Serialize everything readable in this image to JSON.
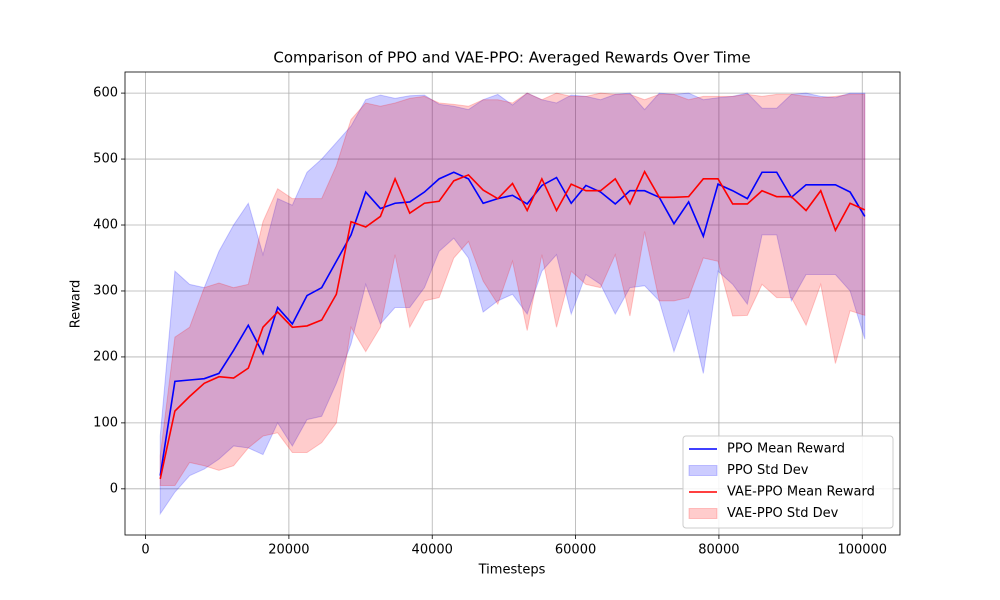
{
  "chart_data": {
    "type": "line",
    "title": "Comparison of PPO and VAE-PPO: Averaged Rewards Over Time",
    "x_label": "Timesteps",
    "y_label": "Reward",
    "x": [
      2048,
      4096,
      6144,
      8192,
      10240,
      12288,
      14336,
      16384,
      18432,
      20480,
      22528,
      24576,
      26624,
      28672,
      30720,
      32768,
      34816,
      36864,
      38912,
      40960,
      43008,
      45056,
      47104,
      49152,
      51200,
      53248,
      55296,
      57344,
      59392,
      61440,
      63488,
      65536,
      67584,
      69632,
      71680,
      73728,
      75776,
      77824,
      79872,
      81920,
      83968,
      86016,
      88064,
      90112,
      92160,
      94208,
      96256,
      98304,
      100352
    ],
    "series": [
      {
        "name": "PPO Mean Reward",
        "color": "#0000ff",
        "values": [
          20,
          163,
          165,
          167,
          175,
          210,
          248,
          205,
          275,
          250,
          293,
          305,
          345,
          385,
          450,
          425,
          433,
          435,
          450,
          470,
          480,
          470,
          433,
          440,
          445,
          432,
          460,
          472,
          433,
          460,
          450,
          432,
          452,
          452,
          442,
          402,
          435,
          383,
          462,
          452,
          440,
          480,
          480,
          442,
          461,
          461,
          461,
          450,
          413
        ]
      },
      {
        "name": "PPO Std Dev",
        "color": "#0000ff",
        "kind": "band",
        "upper": [
          80,
          330,
          310,
          305,
          360,
          400,
          433,
          355,
          440,
          430,
          480,
          500,
          525,
          550,
          590,
          597,
          592,
          596,
          597,
          583,
          580,
          575,
          590,
          598,
          582,
          600,
          590,
          585,
          597,
          595,
          590,
          598,
          600,
          575,
          600,
          598,
          600,
          590,
          593,
          595,
          600,
          577,
          577,
          598,
          600,
          595,
          593,
          600,
          600
        ],
        "lower": [
          -38,
          -5,
          20,
          30,
          45,
          65,
          62,
          52,
          100,
          65,
          105,
          110,
          160,
          220,
          310,
          250,
          275,
          275,
          305,
          360,
          380,
          350,
          268,
          285,
          295,
          265,
          330,
          355,
          265,
          325,
          310,
          265,
          305,
          308,
          285,
          208,
          270,
          175,
          330,
          310,
          280,
          385,
          385,
          285,
          325,
          325,
          325,
          300,
          227
        ]
      },
      {
        "name": "VAE-PPO Mean Reward",
        "color": "#ff0000",
        "values": [
          15,
          118,
          140,
          160,
          170,
          168,
          183,
          245,
          268,
          245,
          247,
          256,
          295,
          405,
          397,
          413,
          470,
          418,
          433,
          436,
          467,
          476,
          453,
          440,
          463,
          422,
          470,
          422,
          462,
          452,
          452,
          470,
          432,
          481,
          442,
          442,
          443,
          470,
          470,
          432,
          432,
          452,
          443,
          443,
          422,
          452,
          392,
          433,
          423
        ]
      },
      {
        "name": "VAE-PPO Std Dev",
        "color": "#ff0000",
        "kind": "band",
        "upper": [
          50,
          230,
          245,
          305,
          312,
          305,
          310,
          405,
          455,
          440,
          440,
          440,
          490,
          560,
          585,
          580,
          585,
          592,
          595,
          585,
          583,
          580,
          590,
          590,
          585,
          600,
          590,
          600,
          595,
          595,
          600,
          598,
          598,
          590,
          598,
          598,
          590,
          595,
          595,
          595,
          598,
          595,
          598,
          598,
          595,
          593,
          595,
          598,
          598
        ],
        "lower": [
          5,
          5,
          40,
          35,
          28,
          35,
          62,
          80,
          85,
          55,
          55,
          70,
          100,
          245,
          208,
          245,
          355,
          245,
          285,
          290,
          350,
          375,
          315,
          280,
          345,
          240,
          355,
          245,
          330,
          310,
          305,
          355,
          262,
          390,
          285,
          285,
          290,
          350,
          345,
          262,
          263,
          310,
          290,
          290,
          248,
          310,
          190,
          270,
          263
        ]
      }
    ],
    "xlim": [
      -2867,
      105267
    ],
    "xticks": [
      0,
      20000,
      40000,
      60000,
      80000,
      100000
    ],
    "ylim": [
      -70,
      632
    ],
    "yticks": [
      0,
      100,
      200,
      300,
      400,
      500,
      600
    ],
    "grid": true,
    "legend": "lower right"
  }
}
